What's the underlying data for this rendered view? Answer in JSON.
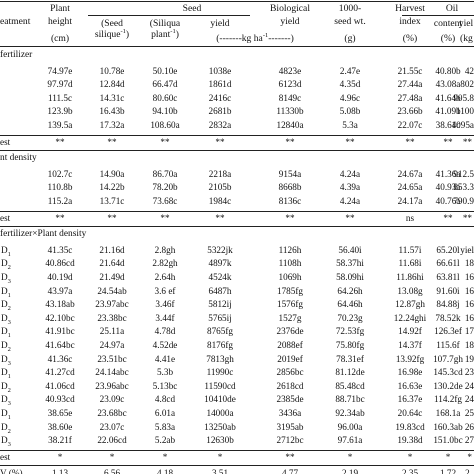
{
  "table": {
    "header": {
      "treatment": "eatment",
      "plant_height": [
        "Plant",
        "height",
        "(cm)"
      ],
      "seed_group": "Seed",
      "seed_silique": [
        "(Seed",
        "silique",
        "-1",
        ")"
      ],
      "silique_plant": [
        "(Siliqua",
        "plant",
        "-1",
        ")"
      ],
      "seed_yield": [
        "yield",
        "(-------kg ha",
        "-1",
        "-------)"
      ],
      "biological_yield": [
        "Biological",
        "yield"
      ],
      "thousand_seed": [
        "1000-",
        "seed wt.",
        "(g)"
      ],
      "harvest_index": [
        "Harvest",
        "index",
        "(%)"
      ],
      "oil_group": "Oil",
      "oil_content": [
        "content",
        "(%)"
      ],
      "oil_yield": [
        "yiel",
        "(kg ha"
      ]
    },
    "sections": [
      {
        "title": "fertilizer",
        "rows": [
          {
            "label": "",
            "values": [
              "74.97e",
              "10.78e",
              "50.10e",
              "1038e",
              "4823e",
              "2.47e",
              "21.55c",
              "40.80b",
              "42"
            ]
          },
          {
            "label": "",
            "values": [
              "97.97d",
              "12.84d",
              "66.47d",
              "1861d",
              "6123d",
              "4.35d",
              "27.44a",
              "43.08a",
              "802"
            ]
          },
          {
            "label": "",
            "values": [
              "111.5c",
              "14.31c",
              "80.60c",
              "2416c",
              "8149c",
              "4.96c",
              "27.48a",
              "41.64b",
              "905.8"
            ]
          },
          {
            "label": "",
            "values": [
              "123.9b",
              "16.43b",
              "94.10b",
              "2681b",
              "11330b",
              "5.08b",
              "23.66b",
              "41.09b",
              "1100"
            ]
          },
          {
            "label": "",
            "values": [
              "139.5a",
              "17.32a",
              "108.60a",
              "2832a",
              "12840a",
              "5.3a",
              "22.07c",
              "38.64c",
              "1095a"
            ]
          }
        ],
        "test": {
          "label": "est",
          "values": [
            "**",
            "**",
            "**",
            "**",
            "**",
            "**",
            "**",
            "**",
            "**"
          ]
        }
      },
      {
        "title": "nt density",
        "rows": [
          {
            "label": "",
            "values": [
              "102.7c",
              "14.90a",
              "86.70a",
              "2218a",
              "9154a",
              "4.24a",
              "24.67a",
              "41.36a",
              "912.5"
            ]
          },
          {
            "label": "",
            "values": [
              "110.8b",
              "14.22b",
              "78.20b",
              "2105b",
              "8668b",
              "4.39a",
              "24.65a",
              "40.93a",
              "853.3"
            ]
          },
          {
            "label": "",
            "values": [
              "115.2a",
              "13.71c",
              "73.68c",
              "1984c",
              "8136c",
              "4.24a",
              "24.17a",
              "40.76a",
              "790.9"
            ]
          }
        ],
        "test": {
          "label": "est",
          "values": [
            "**",
            "**",
            "**",
            "**",
            "**",
            "**",
            "ns",
            "**",
            "**"
          ]
        }
      },
      {
        "title": "fertilizer×Plant density",
        "rows": [
          {
            "label": "D1",
            "values": [
              "41.35c",
              "21.16d",
              "2.8gh",
              "5322jk",
              "1126h",
              "56.40i",
              "11.57i",
              "65.20l",
              "yiel"
            ]
          },
          {
            "label": "D2",
            "values": [
              "40.86cd",
              "21.64d",
              "2.82gh",
              "4897k",
              "1108h",
              "58.37hi",
              "11.68i",
              "66.61l",
              "18"
            ]
          },
          {
            "label": "D3",
            "values": [
              "40.19d",
              "21.49d",
              "2.64h",
              "4524k",
              "1069h",
              "58.09hi",
              "11.86hi",
              "63.81l",
              "16"
            ]
          },
          {
            "label": "D1",
            "values": [
              "43.97a",
              "24.54ab",
              "3.6 ef",
              "6487h",
              "1785fg",
              "64.26h",
              "13.08g",
              "91.60i",
              "16"
            ]
          },
          {
            "label": "D2",
            "values": [
              "43.18ab",
              "23.97abc",
              "3.46f",
              "5812ij",
              "1576fg",
              "64.46h",
              "12.87gh",
              "84.88j",
              "16"
            ]
          },
          {
            "label": "D3",
            "values": [
              "42.10bc",
              "23.38bc",
              "3.44f",
              "5765ij",
              "1527g",
              "70.23g",
              "12.24ghi",
              "78.52k",
              "16"
            ]
          },
          {
            "label": "D1",
            "values": [
              "41.91bc",
              "25.11a",
              "4.78d",
              "8765fg",
              "2376de",
              "72.53fg",
              "14.92f",
              "126.3ef",
              "17"
            ]
          },
          {
            "label": "D2",
            "values": [
              "41.64bc",
              "24.97a",
              "4.52de",
              "8176fg",
              "2088ef",
              "75.80fg",
              "14.37f",
              "115.6f",
              "18"
            ]
          },
          {
            "label": "D3",
            "values": [
              "41.36c",
              "23.51bc",
              "4.41e",
              "7813gh",
              "2019ef",
              "78.31ef",
              "13.92fg",
              "107.7gh",
              "19"
            ]
          },
          {
            "label": "D1",
            "values": [
              "41.27cd",
              "24.14abc",
              "5.3b",
              "11990c",
              "2856bc",
              "81.12de",
              "16.98e",
              "145.3cd",
              "23"
            ]
          },
          {
            "label": "D2",
            "values": [
              "41.06cd",
              "23.96abc",
              "5.13bc",
              "11590cd",
              "2618cd",
              "85.48cd",
              "16.63e",
              "130.2de",
              "24"
            ]
          },
          {
            "label": "D3",
            "values": [
              "40.93cd",
              "23.09c",
              "4.8cd",
              "10410de",
              "2385de",
              "88.71bc",
              "16.37e",
              "114.2fg",
              "24"
            ]
          },
          {
            "label": "D1",
            "values": [
              "38.65e",
              "23.68bc",
              "6.01a",
              "14000a",
              "3436a",
              "92.34ab",
              "20.64c",
              "168.1a",
              "25"
            ]
          },
          {
            "label": "D2",
            "values": [
              "38.60e",
              "23.07c",
              "5.83a",
              "13250ab",
              "3195ab",
              "96.00a",
              "19.83cd",
              "160.3ab",
              "26"
            ]
          },
          {
            "label": "D3",
            "values": [
              "38.21f",
              "22.06cd",
              "5.2ab",
              "12630b",
              "2712bc",
              "97.61a",
              "19.38d",
              "151.0bc",
              "27"
            ]
          }
        ],
        "test": {
          "label": "est",
          "values": [
            "*",
            "*",
            "*",
            "*",
            "**",
            "*",
            "*",
            "*",
            "*"
          ]
        }
      }
    ],
    "cv": {
      "label": "V (%)",
      "values": [
        "1.13",
        "6.56",
        "4.18",
        "3.51",
        "4.77",
        "2.19",
        "2.35",
        "1.72",
        "2."
      ]
    }
  }
}
